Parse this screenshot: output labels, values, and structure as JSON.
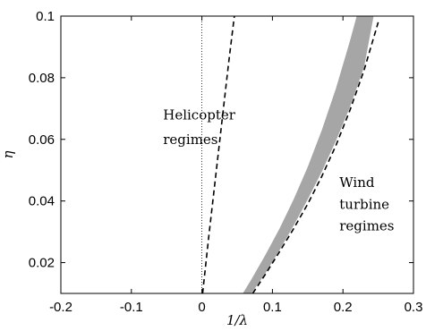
{
  "chart_data": {
    "type": "line",
    "title": "",
    "xlabel": "1/λ",
    "ylabel": "η",
    "xlim": [
      -0.2,
      0.3
    ],
    "ylim": [
      0.01,
      0.1
    ],
    "xticks": [
      "-0.2",
      "-0.1",
      "0",
      "0.1",
      "0.2",
      "0.3"
    ],
    "yticks": [
      "0.02",
      "0.04",
      "0.06",
      "0.08",
      "0.1"
    ],
    "xtick_values": [
      -0.2,
      -0.1,
      0,
      0.1,
      0.2,
      0.3
    ],
    "ytick_values": [
      0.02,
      0.04,
      0.06,
      0.08,
      0.1
    ],
    "grid": false,
    "annotations": [
      {
        "lines": [
          "Helicopter",
          "regimes"
        ],
        "x": -0.055,
        "y": [
          0.0665,
          0.0585
        ]
      },
      {
        "lines": [
          "Wind",
          "turbine",
          "regimes"
        ],
        "x": 0.195,
        "y": [
          0.0445,
          0.0375,
          0.0305
        ]
      }
    ],
    "vertical_reference": {
      "x": 0,
      "style": "dotted"
    },
    "series": [
      {
        "style": "dashed",
        "x": [
          0.001,
          0.01,
          0.02,
          0.03,
          0.038,
          0.046
        ],
        "y": [
          0.01,
          0.029,
          0.049,
          0.069,
          0.085,
          0.1
        ]
      },
      {
        "style": "dashed",
        "x": [
          0.072,
          0.09,
          0.11,
          0.13,
          0.15,
          0.17,
          0.19,
          0.21,
          0.23,
          0.25
        ],
        "y": [
          0.01,
          0.0162,
          0.0235,
          0.031,
          0.039,
          0.048,
          0.058,
          0.0695,
          0.0825,
          0.098
        ]
      }
    ],
    "band": {
      "color": "#a6a6a6",
      "upper_x": [
        0.058,
        0.07,
        0.09,
        0.11,
        0.13,
        0.15,
        0.17,
        0.19,
        0.21,
        0.2195
      ],
      "upper_y": [
        0.01,
        0.0145,
        0.0225,
        0.031,
        0.0405,
        0.051,
        0.063,
        0.0765,
        0.092,
        0.1
      ],
      "lower_x": [
        0.07,
        0.09,
        0.11,
        0.13,
        0.15,
        0.17,
        0.19,
        0.21,
        0.23,
        0.2435
      ],
      "lower_y": [
        0.01,
        0.0165,
        0.024,
        0.032,
        0.0405,
        0.0495,
        0.0595,
        0.0705,
        0.0835,
        0.1
      ]
    }
  }
}
